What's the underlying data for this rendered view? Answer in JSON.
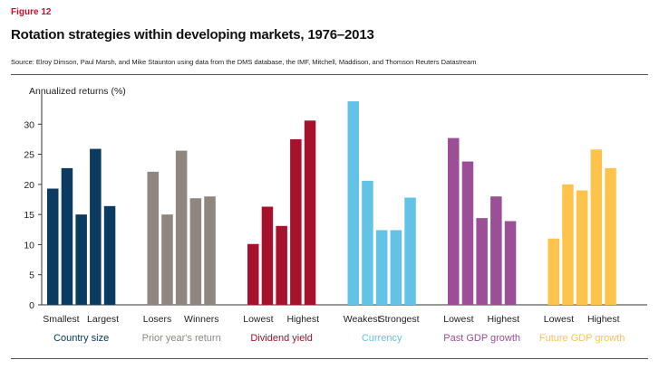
{
  "figure_label": "Figure 12",
  "title": "Rotation strategies within developing markets, 1976–2013",
  "source": "Source: Elroy Dimson, Paul Marsh, and Mike Staunton using data from the DMS database, the IMF, Mitchell, Maddison, and Thomson Reuters Datastream",
  "chart_data": {
    "type": "bar",
    "ylabel": "Annualized returns (%)",
    "ylim": [
      0,
      35
    ],
    "yticks": [
      0,
      5,
      10,
      15,
      20,
      25,
      30
    ],
    "grid": false,
    "groups": [
      {
        "name": "Country size",
        "color": "#0b3b60",
        "low_label": "Smallest",
        "high_label": "Largest",
        "values": [
          19.3,
          22.7,
          15.0,
          25.9,
          16.4
        ]
      },
      {
        "name": "Prior year's return",
        "color": "#8f8680",
        "low_label": "Losers",
        "high_label": "Winners",
        "values": [
          22.1,
          15.0,
          25.6,
          17.7,
          18.0
        ]
      },
      {
        "name": "Dividend yield",
        "color": "#a6122e",
        "low_label": "Lowest",
        "high_label": "Highest",
        "values": [
          10.1,
          16.3,
          13.1,
          27.5,
          30.6
        ]
      },
      {
        "name": "Currency",
        "color": "#62c3e6",
        "low_label": "Weakest",
        "high_label": "Strongest",
        "values": [
          33.8,
          20.6,
          12.4,
          12.4,
          17.8
        ]
      },
      {
        "name": "Past GDP growth",
        "color": "#9b4f96",
        "low_label": "Lowest",
        "high_label": "Highest",
        "values": [
          27.7,
          23.8,
          14.4,
          18.0,
          13.9
        ]
      },
      {
        "name": "Future GDP growth",
        "color": "#fdc34a",
        "low_label": "Lowest",
        "high_label": "Highest",
        "values": [
          11.0,
          20.0,
          19.0,
          25.8,
          22.7
        ]
      }
    ]
  }
}
